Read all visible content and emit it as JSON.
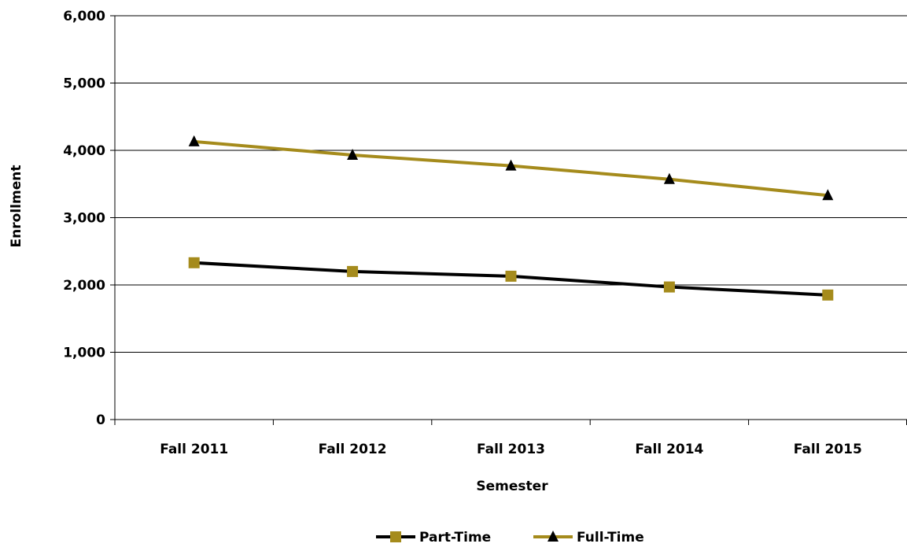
{
  "chart_data": {
    "type": "line",
    "categories": [
      "Fall 2011",
      "Fall 2012",
      "Fall 2013",
      "Fall 2014",
      "Fall 2015"
    ],
    "series": [
      {
        "name": "Part-Time",
        "values": [
          2330,
          2200,
          2130,
          1970,
          1850
        ],
        "line_color": "#000000",
        "marker": "square",
        "marker_color": "#A58B1C"
      },
      {
        "name": "Full-Time",
        "values": [
          4130,
          3930,
          3770,
          3570,
          3330
        ],
        "line_color": "#A58B1C",
        "marker": "triangle",
        "marker_color": "#000000"
      }
    ],
    "title": "",
    "xlabel": "Semester",
    "ylabel": "Enrollment",
    "ylim": [
      0,
      6000
    ],
    "yticks": [
      0,
      1000,
      2000,
      3000,
      4000,
      5000,
      6000
    ],
    "ytick_labels": [
      "0",
      "1,000",
      "2,000",
      "3,000",
      "4,000",
      "5,000",
      "6,000"
    ],
    "grid": "horizontal",
    "legend_position": "bottom"
  }
}
